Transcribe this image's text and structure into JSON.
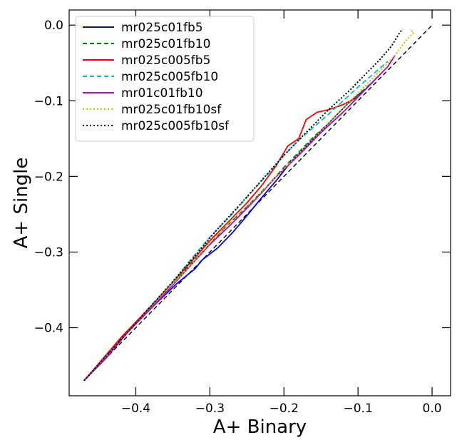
{
  "chart_data": {
    "type": "line",
    "title": "",
    "xlabel": "A+ Binary",
    "ylabel": "A+ Single",
    "xlim": [
      -0.49,
      0.025
    ],
    "ylim": [
      -0.49,
      0.02
    ],
    "x_ticks": [
      -0.4,
      -0.3,
      -0.2,
      -0.1,
      0.0
    ],
    "x_tick_labels": [
      "−0.4",
      "−0.3",
      "−0.2",
      "−0.1",
      "0.0"
    ],
    "y_ticks": [
      0.0,
      -0.1,
      -0.2,
      -0.3,
      -0.4
    ],
    "y_tick_labels": [
      "0.0",
      "−0.1",
      "−0.2",
      "−0.3",
      "−0.4"
    ],
    "grid": false,
    "legend_position": "top-left",
    "reference_line": {
      "x": [
        -0.47,
        0.0
      ],
      "y": [
        -0.47,
        0.0
      ],
      "color": "#000000",
      "dash": "dashed"
    },
    "series": [
      {
        "name": "mr025c01fb5",
        "color": "#0000ff",
        "dash": "solid",
        "points": [
          [
            -0.47,
            -0.47
          ],
          [
            -0.42,
            -0.415
          ],
          [
            -0.38,
            -0.375
          ],
          [
            -0.345,
            -0.342
          ],
          [
            -0.32,
            -0.322
          ],
          [
            -0.31,
            -0.31
          ],
          [
            -0.29,
            -0.295
          ],
          [
            -0.27,
            -0.275
          ],
          [
            -0.25,
            -0.252
          ],
          [
            -0.23,
            -0.228
          ],
          [
            -0.21,
            -0.205
          ],
          [
            -0.19,
            -0.18
          ],
          [
            -0.17,
            -0.16
          ],
          [
            -0.15,
            -0.14
          ],
          [
            -0.13,
            -0.12
          ],
          [
            -0.11,
            -0.1
          ],
          [
            -0.09,
            -0.085
          ],
          [
            -0.07,
            -0.065
          ]
        ]
      },
      {
        "name": "mr025c01fb10",
        "color": "#008000",
        "dash": "dashed",
        "points": [
          [
            -0.47,
            -0.47
          ],
          [
            -0.43,
            -0.425
          ],
          [
            -0.39,
            -0.382
          ],
          [
            -0.35,
            -0.34
          ],
          [
            -0.31,
            -0.3
          ],
          [
            -0.28,
            -0.268
          ],
          [
            -0.25,
            -0.24
          ],
          [
            -0.22,
            -0.21
          ],
          [
            -0.2,
            -0.188
          ],
          [
            -0.18,
            -0.168
          ],
          [
            -0.16,
            -0.148
          ],
          [
            -0.14,
            -0.13
          ],
          [
            -0.12,
            -0.11
          ],
          [
            -0.1,
            -0.092
          ],
          [
            -0.08,
            -0.075
          ]
        ]
      },
      {
        "name": "mr025c005fb5",
        "color": "#ff0000",
        "dash": "solid",
        "points": [
          [
            -0.47,
            -0.47
          ],
          [
            -0.42,
            -0.413
          ],
          [
            -0.37,
            -0.362
          ],
          [
            -0.33,
            -0.318
          ],
          [
            -0.3,
            -0.285
          ],
          [
            -0.27,
            -0.255
          ],
          [
            -0.25,
            -0.235
          ],
          [
            -0.23,
            -0.212
          ],
          [
            -0.21,
            -0.185
          ],
          [
            -0.195,
            -0.16
          ],
          [
            -0.18,
            -0.15
          ],
          [
            -0.17,
            -0.125
          ],
          [
            -0.155,
            -0.115
          ],
          [
            -0.14,
            -0.112
          ],
          [
            -0.12,
            -0.105
          ],
          [
            -0.1,
            -0.095
          ]
        ]
      },
      {
        "name": "mr025c005fb10",
        "color": "#00bfbf",
        "dash": "dashed",
        "points": [
          [
            -0.47,
            -0.47
          ],
          [
            -0.41,
            -0.405
          ],
          [
            -0.36,
            -0.352
          ],
          [
            -0.33,
            -0.315
          ],
          [
            -0.3,
            -0.28
          ],
          [
            -0.27,
            -0.25
          ],
          [
            -0.245,
            -0.222
          ],
          [
            -0.22,
            -0.195
          ],
          [
            -0.2,
            -0.172
          ],
          [
            -0.18,
            -0.152
          ],
          [
            -0.16,
            -0.135
          ],
          [
            -0.14,
            -0.118
          ],
          [
            -0.12,
            -0.1
          ],
          [
            -0.1,
            -0.082
          ],
          [
            -0.08,
            -0.065
          ],
          [
            -0.06,
            -0.048
          ]
        ]
      },
      {
        "name": "mr01c01fb10",
        "color": "#bf00bf",
        "dash": "solid",
        "points": [
          [
            -0.47,
            -0.47
          ],
          [
            -0.44,
            -0.44
          ],
          [
            -0.41,
            -0.405
          ],
          [
            -0.37,
            -0.365
          ],
          [
            -0.33,
            -0.322
          ],
          [
            -0.3,
            -0.29
          ],
          [
            -0.27,
            -0.262
          ],
          [
            -0.24,
            -0.232
          ],
          [
            -0.21,
            -0.2
          ],
          [
            -0.18,
            -0.172
          ],
          [
            -0.15,
            -0.142
          ],
          [
            -0.12,
            -0.115
          ],
          [
            -0.1,
            -0.095
          ],
          [
            -0.08,
            -0.075
          ],
          [
            -0.06,
            -0.055
          ],
          [
            -0.05,
            -0.04
          ]
        ]
      },
      {
        "name": "mr025c01fb10sf",
        "color": "#bfbf00",
        "dash": "dotted",
        "points": [
          [
            -0.47,
            -0.47
          ],
          [
            -0.41,
            -0.405
          ],
          [
            -0.37,
            -0.362
          ],
          [
            -0.33,
            -0.322
          ],
          [
            -0.3,
            -0.288
          ],
          [
            -0.27,
            -0.258
          ],
          [
            -0.24,
            -0.23
          ],
          [
            -0.21,
            -0.2
          ],
          [
            -0.18,
            -0.17
          ],
          [
            -0.15,
            -0.14
          ],
          [
            -0.12,
            -0.11
          ],
          [
            -0.09,
            -0.08
          ],
          [
            -0.07,
            -0.06
          ],
          [
            -0.05,
            -0.04
          ],
          [
            -0.035,
            -0.02
          ],
          [
            -0.025,
            -0.01
          ],
          [
            -0.03,
            -0.005
          ]
        ]
      },
      {
        "name": "mr025c005fb10sf",
        "color": "#000000",
        "dash": "dotted",
        "points": [
          [
            -0.47,
            -0.47
          ],
          [
            -0.41,
            -0.405
          ],
          [
            -0.36,
            -0.35
          ],
          [
            -0.32,
            -0.305
          ],
          [
            -0.29,
            -0.27
          ],
          [
            -0.26,
            -0.238
          ],
          [
            -0.23,
            -0.205
          ],
          [
            -0.2,
            -0.172
          ],
          [
            -0.17,
            -0.142
          ],
          [
            -0.14,
            -0.112
          ],
          [
            -0.11,
            -0.085
          ],
          [
            -0.09,
            -0.065
          ],
          [
            -0.07,
            -0.045
          ],
          [
            -0.055,
            -0.028
          ],
          [
            -0.045,
            -0.012
          ],
          [
            -0.04,
            -0.005
          ]
        ]
      }
    ]
  }
}
